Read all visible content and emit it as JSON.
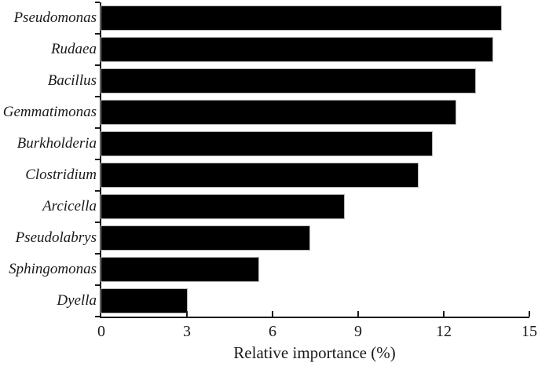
{
  "figure": {
    "background": "#ffffff",
    "text_color": "#1a1a1a"
  },
  "chart_data": {
    "type": "bar",
    "orientation": "horizontal",
    "title": "",
    "xlabel": "Relative importance (%)",
    "ylabel": "",
    "categories": [
      "Pseudomonas",
      "Rudaea",
      "Bacillus",
      "Gemmatimonas",
      "Burkholderia",
      "Clostridium",
      "Arcicella",
      "Pseudolabrys",
      "Sphingomonas",
      "Dyella"
    ],
    "values": [
      14.0,
      13.7,
      13.1,
      12.4,
      11.6,
      11.1,
      8.5,
      7.3,
      5.5,
      3.0
    ],
    "xlim": [
      0,
      15
    ],
    "xticks": [
      0,
      3,
      6,
      9,
      12,
      15
    ],
    "bar_color": "#000000",
    "bar_edge_color": "#b5b5b5",
    "axis_color": "#1a1a1a",
    "grid": false,
    "legend": false,
    "category_label_style": "italic"
  }
}
